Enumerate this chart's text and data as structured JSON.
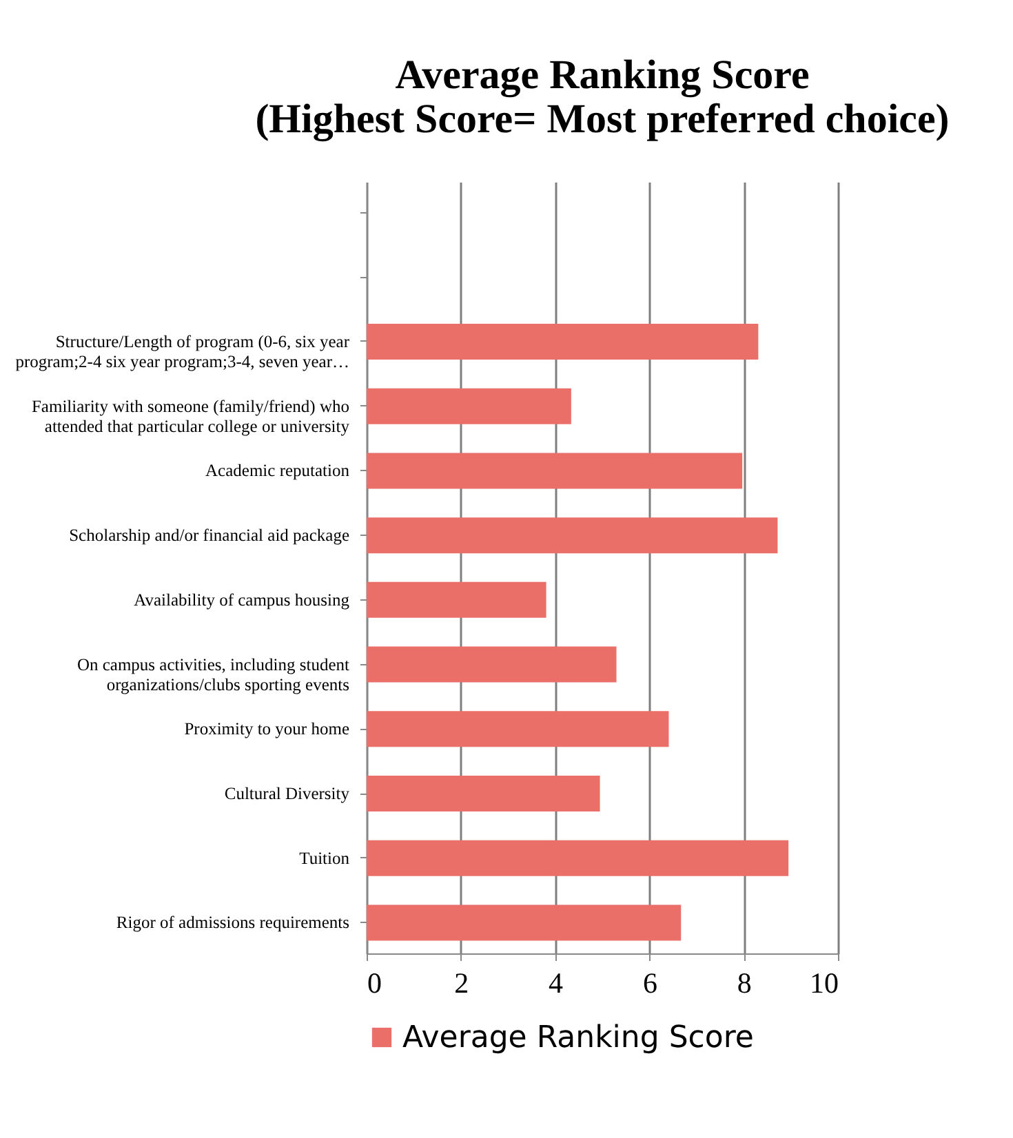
{
  "chart_data": {
    "type": "bar",
    "orientation": "horizontal",
    "title": [
      "Average Ranking Score",
      "(Highest Score= Most preferred choice)"
    ],
    "categories": [
      null,
      null,
      "Structure/Length of program (0-6, six year program;2-4 six year program;3-4, seven year…",
      "Familiarity with someone (family/friend) who attended that particular college or university",
      "Academic reputation",
      "Scholarship and/or financial aid package",
      "Availability of campus housing",
      "On campus activities, including student organizations/clubs sporting events",
      "Proximity to your home",
      "Cultural Diversity",
      "Tuition",
      "Rigor of admissions requirements"
    ],
    "series": [
      {
        "name": "Average Ranking Score",
        "color": "#ea6f69",
        "values": [
          null,
          null,
          8.31,
          4.34,
          7.97,
          8.72,
          3.81,
          5.3,
          6.41,
          4.95,
          8.95,
          6.67
        ]
      }
    ],
    "xlim": [
      0,
      10
    ],
    "xticks": [
      0,
      2,
      4,
      6,
      8,
      10
    ],
    "grid": "x",
    "legend": "bottom"
  }
}
